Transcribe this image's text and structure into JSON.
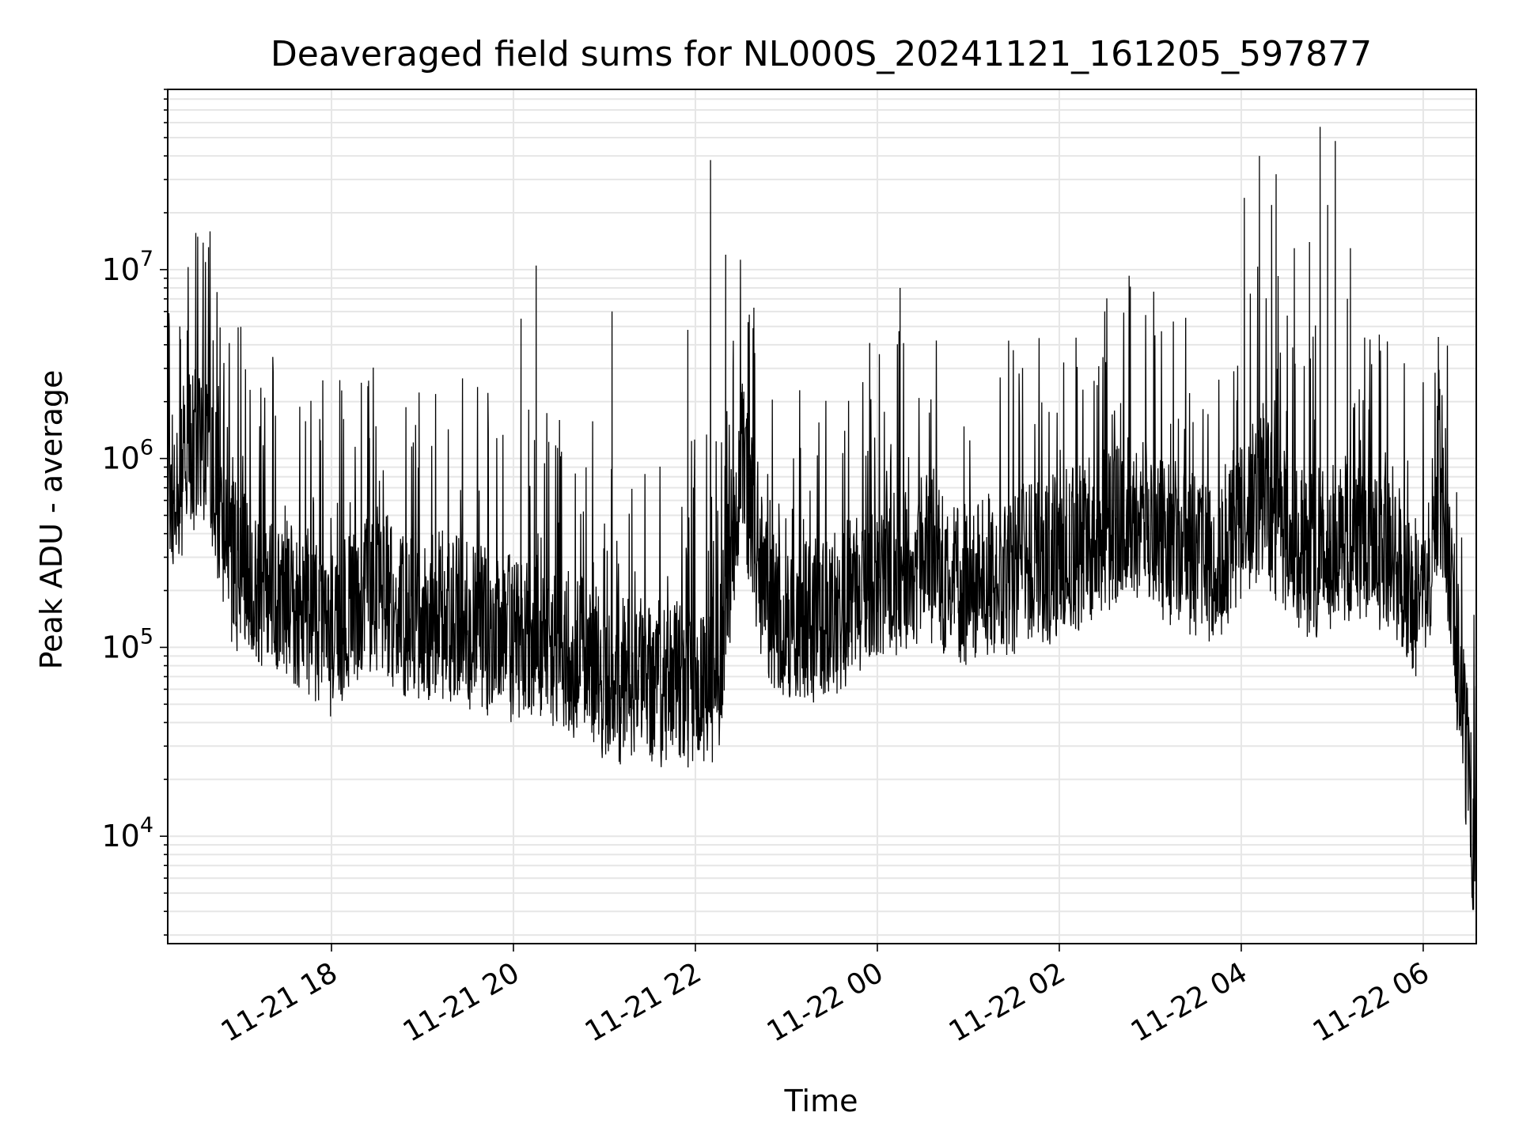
{
  "chart_data": {
    "type": "line",
    "title": "Deaveraged field sums for NL000S_20241121_161205_597877",
    "xlabel": "Time",
    "ylabel": "Peak ADU - average",
    "xlim": [
      "2024-11-21 16:12",
      "2024-11-22 06:35"
    ],
    "ylim": [
      2700,
      90000000
    ],
    "yscale": "log",
    "grid": true,
    "x_ticks": [
      {
        "t": "2024-11-21 18:00",
        "label": "11-21 18"
      },
      {
        "t": "2024-11-21 20:00",
        "label": "11-21 20"
      },
      {
        "t": "2024-11-21 22:00",
        "label": "11-21 22"
      },
      {
        "t": "2024-11-22 00:00",
        "label": "11-22 00"
      },
      {
        "t": "2024-11-22 02:00",
        "label": "11-22 02"
      },
      {
        "t": "2024-11-22 04:00",
        "label": "11-22 04"
      },
      {
        "t": "2024-11-22 06:00",
        "label": "11-22 06"
      }
    ],
    "y_ticks": [
      {
        "value": 10000,
        "base": "10",
        "exp": "4"
      },
      {
        "value": 100000,
        "base": "10",
        "exp": "5"
      },
      {
        "value": 1000000,
        "base": "10",
        "exp": "6"
      },
      {
        "value": 10000000,
        "base": "10",
        "exp": "7"
      }
    ],
    "series": [
      {
        "color": "#000000",
        "x": [
          "2024-11-21 16:12",
          "2024-11-21 16:18",
          "2024-11-21 16:24",
          "2024-11-21 16:30",
          "2024-11-21 16:36",
          "2024-11-21 16:42",
          "2024-11-21 16:48",
          "2024-11-21 16:54",
          "2024-11-21 17:00",
          "2024-11-21 17:15",
          "2024-11-21 17:30",
          "2024-11-21 17:45",
          "2024-11-21 18:00",
          "2024-11-21 18:15",
          "2024-11-21 18:30",
          "2024-11-21 18:45",
          "2024-11-21 19:00",
          "2024-11-21 19:15",
          "2024-11-21 19:30",
          "2024-11-21 19:45",
          "2024-11-21 20:00",
          "2024-11-21 20:15",
          "2024-11-21 20:30",
          "2024-11-21 20:45",
          "2024-11-21 21:00",
          "2024-11-21 21:15",
          "2024-11-21 21:30",
          "2024-11-21 21:45",
          "2024-11-21 22:00",
          "2024-11-21 22:15",
          "2024-11-21 22:30",
          "2024-11-21 22:45",
          "2024-11-21 23:00",
          "2024-11-21 23:15",
          "2024-11-21 23:30",
          "2024-11-21 23:45",
          "2024-11-22 00:00",
          "2024-11-22 00:15",
          "2024-11-22 00:30",
          "2024-11-22 00:45",
          "2024-11-22 01:00",
          "2024-11-22 01:15",
          "2024-11-22 01:30",
          "2024-11-22 01:45",
          "2024-11-22 02:00",
          "2024-11-22 02:15",
          "2024-11-22 02:30",
          "2024-11-22 02:45",
          "2024-11-22 03:00",
          "2024-11-22 03:15",
          "2024-11-22 03:30",
          "2024-11-22 03:45",
          "2024-11-22 04:00",
          "2024-11-22 04:15",
          "2024-11-22 04:30",
          "2024-11-22 04:45",
          "2024-11-22 05:00",
          "2024-11-22 05:15",
          "2024-11-22 05:30",
          "2024-11-22 05:45",
          "2024-11-22 06:00",
          "2024-11-22 06:10",
          "2024-11-22 06:20",
          "2024-11-22 06:30",
          "2024-11-22 06:35"
        ],
        "y": [
          600000,
          800000,
          900000,
          1200000,
          1000000,
          800000,
          500000,
          300000,
          250000,
          220000,
          200000,
          150000,
          120000,
          180000,
          200000,
          160000,
          140000,
          150000,
          130000,
          120000,
          110000,
          120000,
          100000,
          90000,
          70000,
          65000,
          65000,
          65000,
          65000,
          70000,
          1000000,
          200000,
          130000,
          140000,
          150000,
          180000,
          250000,
          250000,
          300000,
          250000,
          220000,
          250000,
          250000,
          280000,
          300000,
          350000,
          400000,
          500000,
          450000,
          350000,
          300000,
          300000,
          500000,
          600000,
          400000,
          300000,
          350000,
          400000,
          350000,
          250000,
          150000,
          800000,
          150000,
          20000,
          5000
        ],
        "peaks": [
          {
            "t": "2024-11-21 16:20",
            "value": 5000000
          },
          {
            "t": "2024-11-21 20:05",
            "value": 5500000
          },
          {
            "t": "2024-11-21 20:15",
            "value": 10500000
          },
          {
            "t": "2024-11-21 21:05",
            "value": 6000000
          },
          {
            "t": "2024-11-21 21:55",
            "value": 4800000
          },
          {
            "t": "2024-11-21 22:10",
            "value": 38000000
          },
          {
            "t": "2024-11-21 22:20",
            "value": 12000000
          },
          {
            "t": "2024-11-21 22:25",
            "value": 4200000
          },
          {
            "t": "2024-11-22 00:15",
            "value": 8000000
          },
          {
            "t": "2024-11-22 02:30",
            "value": 6000000
          },
          {
            "t": "2024-11-22 04:02",
            "value": 24000000
          },
          {
            "t": "2024-11-22 04:12",
            "value": 40000000
          },
          {
            "t": "2024-11-22 04:20",
            "value": 22000000
          },
          {
            "t": "2024-11-22 04:23",
            "value": 32000000
          },
          {
            "t": "2024-11-22 04:35",
            "value": 13000000
          },
          {
            "t": "2024-11-22 04:45",
            "value": 14000000
          },
          {
            "t": "2024-11-22 04:52",
            "value": 57000000
          },
          {
            "t": "2024-11-22 04:57",
            "value": 22000000
          },
          {
            "t": "2024-11-22 05:02",
            "value": 48000000
          },
          {
            "t": "2024-11-22 05:10",
            "value": 7000000
          },
          {
            "t": "2024-11-22 05:12",
            "value": 13000000
          },
          {
            "t": "2024-11-22 06:10",
            "value": 4400000
          }
        ]
      }
    ]
  }
}
